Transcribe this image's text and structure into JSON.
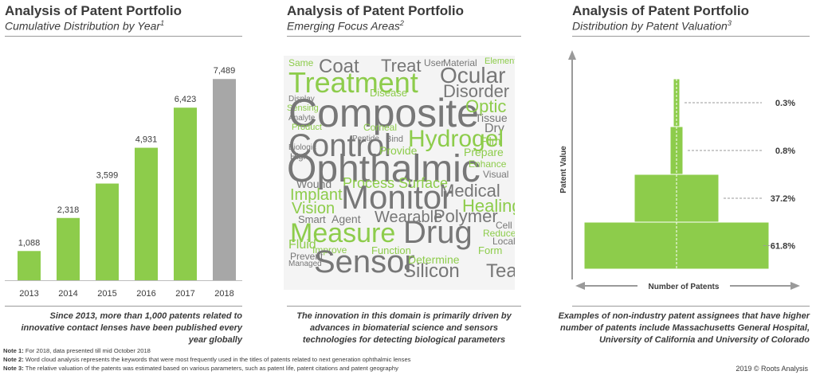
{
  "panels": [
    {
      "title": "Analysis of Patent Portfolio",
      "subtitle": "Cumulative Distribution by Year",
      "subtitle_sup": "1",
      "note": "Since 2013, more than 1,000 patents related to innovative contact lenses have been published every year globally"
    },
    {
      "title": "Analysis of Patent Portfolio",
      "subtitle": "Emerging Focus Areas",
      "subtitle_sup": "2",
      "note": "The innovation in this domain is primarily driven by advances in biomaterial science and sensors technologies for detecting biological parameters"
    },
    {
      "title": "Analysis of Patent Portfolio",
      "subtitle": "Distribution by Patent Valuation",
      "subtitle_sup": "3",
      "note": "Examples of non-industry patent assignees that have higher number of patents include Massachusetts General Hospital, University of California and University of Colorado"
    }
  ],
  "chart_data": [
    {
      "type": "bar",
      "title": "Cumulative Distribution by Year",
      "categories": [
        "2013",
        "2014",
        "2015",
        "2016",
        "2017",
        "2018"
      ],
      "values": [
        1088,
        2318,
        3599,
        4931,
        6423,
        7489
      ],
      "value_labels": [
        "1,088",
        "2,318",
        "3,599",
        "4,931",
        "6,423",
        "7,489"
      ],
      "colors": [
        "#8dcc4b",
        "#8dcc4b",
        "#8dcc4b",
        "#8dcc4b",
        "#8dcc4b",
        "#a7a7a7"
      ],
      "ylim": [
        0,
        8000
      ]
    },
    {
      "type": "word-cloud",
      "title": "Emerging Focus Areas",
      "words": [
        {
          "text": "Same",
          "weight": 3,
          "color": "#8dcc4b"
        },
        {
          "text": "Coat",
          "weight": 5,
          "color": "#777777"
        },
        {
          "text": "Treat",
          "weight": 5,
          "color": "#777777"
        },
        {
          "text": "User",
          "weight": 3,
          "color": "#777777"
        },
        {
          "text": "Material",
          "weight": 3,
          "color": "#777777"
        },
        {
          "text": "Element",
          "weight": 2,
          "color": "#8dcc4b"
        },
        {
          "text": "Treatment",
          "weight": 10,
          "color": "#8dcc4b"
        },
        {
          "text": "Ocular",
          "weight": 7,
          "color": "#777777"
        },
        {
          "text": "Display",
          "weight": 2,
          "color": "#777777"
        },
        {
          "text": "Disease",
          "weight": 3,
          "color": "#8dcc4b"
        },
        {
          "text": "Disorder",
          "weight": 5,
          "color": "#777777"
        },
        {
          "text": "Sensing",
          "weight": 2,
          "color": "#8dcc4b"
        },
        {
          "text": "Composite",
          "weight": 11,
          "color": "#777777"
        },
        {
          "text": "Optic",
          "weight": 4,
          "color": "#8dcc4b"
        },
        {
          "text": "Analyte",
          "weight": 2,
          "color": "#777777"
        },
        {
          "text": "Tissue",
          "weight": 3,
          "color": "#777777"
        },
        {
          "text": "Product",
          "weight": 2,
          "color": "#8dcc4b"
        },
        {
          "text": "Corneal",
          "weight": 2,
          "color": "#8dcc4b"
        },
        {
          "text": "Dry",
          "weight": 3,
          "color": "#777777"
        },
        {
          "text": "Control",
          "weight": 10,
          "color": "#777777"
        },
        {
          "text": "Hydrogel",
          "weight": 7,
          "color": "#8dcc4b"
        },
        {
          "text": "Biologic",
          "weight": 2,
          "color": "#777777"
        },
        {
          "text": "Peptide",
          "weight": 2,
          "color": "#777777"
        },
        {
          "text": "Bind",
          "weight": 2,
          "color": "#777777"
        },
        {
          "text": "Provide",
          "weight": 3,
          "color": "#8dcc4b"
        },
        {
          "text": "Prepare",
          "weight": 3,
          "color": "#8dcc4b"
        },
        {
          "text": "Film",
          "weight": 3,
          "color": "#8dcc4b"
        },
        {
          "text": "High",
          "weight": 2,
          "color": "#777777"
        },
        {
          "text": "Ophthalmic",
          "weight": 12,
          "color": "#777777"
        },
        {
          "text": "Enhance",
          "weight": 2,
          "color": "#8dcc4b"
        },
        {
          "text": "Wound",
          "weight": 3,
          "color": "#777777"
        },
        {
          "text": "Process",
          "weight": 4,
          "color": "#8dcc4b"
        },
        {
          "text": "Surface",
          "weight": 4,
          "color": "#8dcc4b"
        },
        {
          "text": "Visual",
          "weight": 2,
          "color": "#777777"
        },
        {
          "text": "Implant",
          "weight": 4,
          "color": "#8dcc4b"
        },
        {
          "text": "Medical",
          "weight": 5,
          "color": "#777777"
        },
        {
          "text": "Monitor",
          "weight": 10,
          "color": "#777777"
        },
        {
          "text": "Vision",
          "weight": 4,
          "color": "#8dcc4b"
        },
        {
          "text": "Healing",
          "weight": 5,
          "color": "#8dcc4b"
        },
        {
          "text": "Smart",
          "weight": 3,
          "color": "#777777"
        },
        {
          "text": "Agent",
          "weight": 3,
          "color": "#777777"
        },
        {
          "text": "Wearable",
          "weight": 5,
          "color": "#777777"
        },
        {
          "text": "Polymer",
          "weight": 5,
          "color": "#777777"
        },
        {
          "text": "Cell",
          "weight": 2,
          "color": "#777777"
        },
        {
          "text": "Measure",
          "weight": 10,
          "color": "#8dcc4b"
        },
        {
          "text": "Reduce",
          "weight": 2,
          "color": "#8dcc4b"
        },
        {
          "text": "Local",
          "weight": 2,
          "color": "#777777"
        },
        {
          "text": "Drug",
          "weight": 10,
          "color": "#777777"
        },
        {
          "text": "Fluid",
          "weight": 3,
          "color": "#8dcc4b"
        },
        {
          "text": "Improve",
          "weight": 2,
          "color": "#8dcc4b"
        },
        {
          "text": "Function",
          "weight": 2,
          "color": "#8dcc4b"
        },
        {
          "text": "Form",
          "weight": 2,
          "color": "#8dcc4b"
        },
        {
          "text": "Sensor",
          "weight": 10,
          "color": "#777777"
        },
        {
          "text": "Determine",
          "weight": 2,
          "color": "#8dcc4b"
        },
        {
          "text": "Silicon",
          "weight": 5,
          "color": "#777777"
        },
        {
          "text": "Tear",
          "weight": 5,
          "color": "#777777"
        },
        {
          "text": "Prevent",
          "weight": 2,
          "color": "#777777"
        },
        {
          "text": "Managed",
          "weight": 1,
          "color": "#777777"
        }
      ]
    },
    {
      "type": "funnel",
      "title": "Distribution by Patent Valuation",
      "ylabel": "Patent Value",
      "xlabel": "Number of Patents",
      "categories": [
        "0.3%",
        "0.8%",
        "37.2%",
        "61.8%"
      ],
      "values": [
        0.3,
        0.8,
        37.2,
        61.8
      ],
      "color": "#8dcc4b"
    }
  ],
  "footer": {
    "notes": [
      {
        "label": "Note 1:",
        "text": "For 2018, data presented till mid October 2018"
      },
      {
        "label": "Note 2:",
        "text": "Word cloud analysis represents the keywords that were most frequently used in the titles of patents related to next generation ophthalmic lenses"
      },
      {
        "label": "Note 3:",
        "text": "The relative valuation of the patents was estimated based on various parameters, such as patent life, patent citations and patent geography"
      }
    ],
    "copyright": "2019 © Roots Analysis"
  }
}
